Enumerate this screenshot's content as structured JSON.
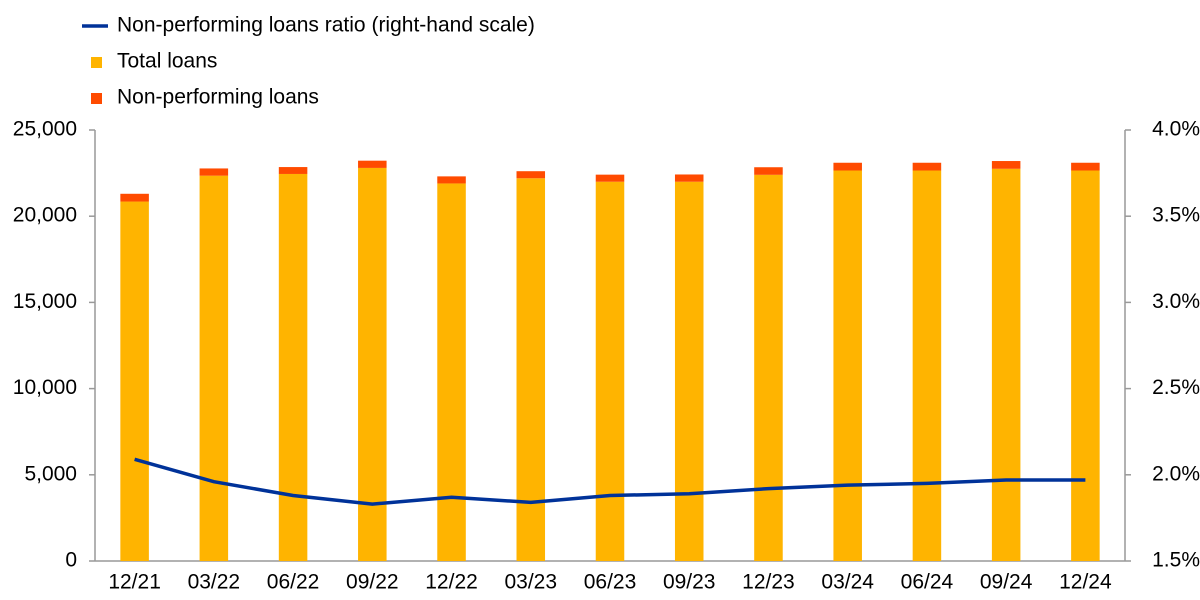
{
  "chart_data": {
    "type": "bar",
    "categories": [
      "12/21",
      "03/22",
      "06/22",
      "09/22",
      "12/22",
      "03/23",
      "06/23",
      "09/23",
      "12/23",
      "03/24",
      "06/24",
      "09/24",
      "12/24"
    ],
    "series": [
      {
        "name": "Non-performing loans ratio (right-hand scale)",
        "type": "line",
        "axis": "y2",
        "color": "#003299",
        "values": [
          2.09,
          1.96,
          1.88,
          1.83,
          1.87,
          1.84,
          1.88,
          1.89,
          1.92,
          1.94,
          1.95,
          1.97,
          1.97
        ]
      },
      {
        "name": "Total loans",
        "type": "bar",
        "color": "#FFB400",
        "values": [
          20850,
          22350,
          22450,
          22800,
          21900,
          22200,
          22000,
          22000,
          22400,
          22650,
          22650,
          22750,
          22650
        ]
      },
      {
        "name": "Non-performing loans",
        "type": "bar",
        "color": "#FF4B00",
        "values": [
          450,
          420,
          400,
          420,
          410,
          410,
          410,
          420,
          440,
          450,
          450,
          450,
          450
        ]
      }
    ],
    "ylim": [
      0,
      25000
    ],
    "yticks": [
      0,
      {
        "value": 5000,
        "label": "5,000"
      },
      {
        "value": 10000,
        "label": "10,000"
      },
      {
        "value": 15000,
        "label": "15,000"
      },
      {
        "value": 20000,
        "label": "20,000"
      },
      {
        "value": 25000,
        "label": "25,000"
      }
    ],
    "y2lim": [
      1.5,
      4.0
    ],
    "y2ticks": [
      {
        "value": 1.5,
        "label": "1.5%"
      },
      {
        "value": 2.0,
        "label": "2.0%"
      },
      {
        "value": 2.5,
        "label": "2.5%"
      },
      {
        "value": 3.0,
        "label": "3.0%"
      },
      {
        "value": 3.5,
        "label": "3.5%"
      },
      {
        "value": 4.0,
        "label": "4.0%"
      }
    ],
    "grid": false
  }
}
